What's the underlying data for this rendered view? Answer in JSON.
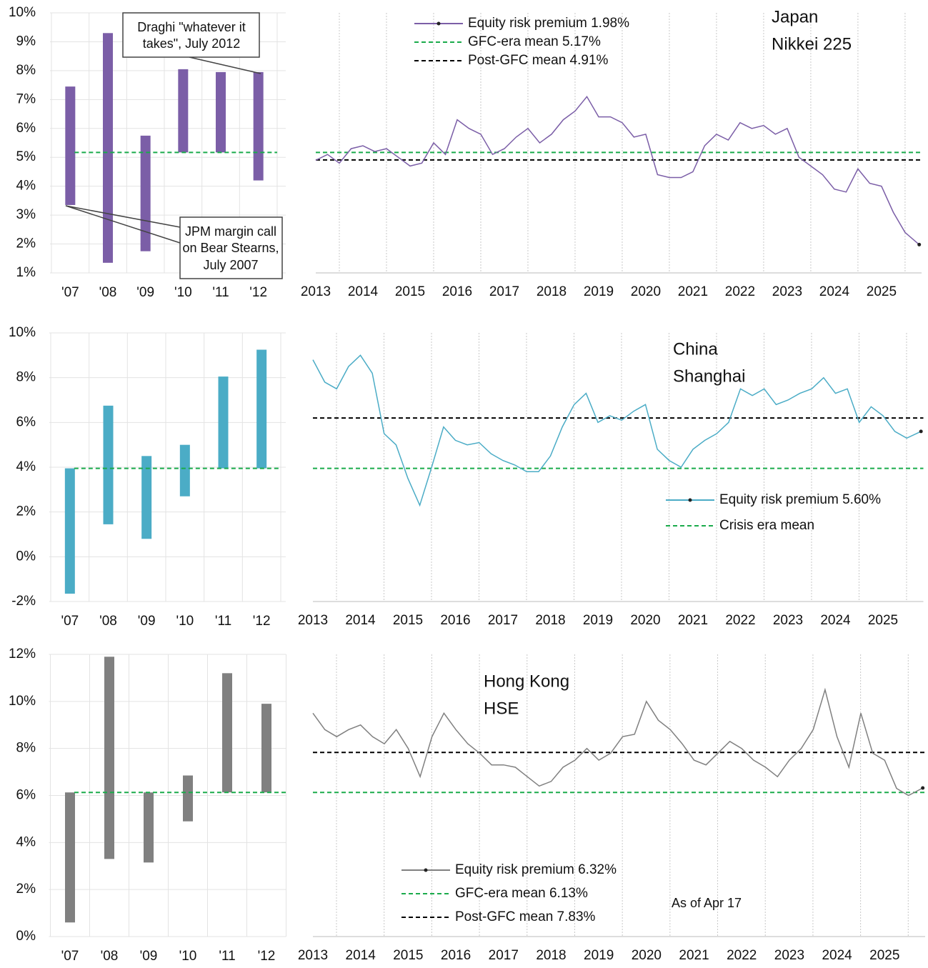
{
  "chart_data": [
    {
      "type": "bar",
      "categories": [
        "'07",
        "'08",
        "'09",
        "'10",
        "'11",
        "'12"
      ],
      "ranges": [
        [
          3.35,
          7.45
        ],
        [
          1.35,
          9.3
        ],
        [
          1.75,
          5.75
        ],
        [
          5.17,
          8.05
        ],
        [
          5.17,
          7.95
        ],
        [
          4.2,
          7.95
        ]
      ],
      "color": "#7b5ea7",
      "ylim": [
        1,
        10
      ],
      "yticks": [
        {
          "value": 1,
          "label": "1%"
        },
        {
          "value": 2,
          "label": "2%"
        },
        {
          "value": 3,
          "label": "3%"
        },
        {
          "value": 4,
          "label": "4%"
        },
        {
          "value": 5,
          "label": "5%"
        },
        {
          "value": 6,
          "label": "6%"
        },
        {
          "value": 7,
          "label": "7%"
        },
        {
          "value": 8,
          "label": "8%"
        },
        {
          "value": 9,
          "label": "9%"
        },
        {
          "value": 10,
          "label": "10%"
        }
      ],
      "reference_lines": [
        {
          "value": 5.17,
          "color": "#1aab4b"
        }
      ],
      "annotations": [
        {
          "lines": [
            "Draghi \"whatever it",
            "takes\", July 2012"
          ]
        },
        {
          "lines": [
            "JPM margin call",
            "on Bear Stearns,",
            "July 2007"
          ]
        }
      ],
      "grid": true
    },
    {
      "type": "line",
      "title": "Japan",
      "subtitle": "Nikkei 225",
      "x": [
        2013,
        2013.25,
        2013.5,
        2013.75,
        2014,
        2014.25,
        2014.5,
        2014.75,
        2015,
        2015.25,
        2015.5,
        2015.75,
        2016,
        2016.25,
        2016.5,
        2016.75,
        2017,
        2017.25,
        2017.5,
        2017.75,
        2018,
        2018.25,
        2018.5,
        2018.75,
        2019,
        2019.25,
        2019.5,
        2019.75,
        2020,
        2020.25,
        2020.5,
        2020.75,
        2021,
        2021.25,
        2021.5,
        2021.75,
        2022,
        2022.25,
        2022.5,
        2022.75,
        2023,
        2023.25,
        2023.5,
        2023.75,
        2024,
        2024.25,
        2024.5,
        2024.75,
        2025,
        2025.25,
        2025.5,
        2025.8
      ],
      "series": [
        {
          "name": "Equity risk premium 1.98%",
          "color": "#7b5ea7",
          "values": [
            4.9,
            5.1,
            4.8,
            5.3,
            5.4,
            5.2,
            5.3,
            5.0,
            4.7,
            4.8,
            5.5,
            5.1,
            6.3,
            6.0,
            5.8,
            5.1,
            5.3,
            5.7,
            6.0,
            5.5,
            5.8,
            6.3,
            6.6,
            7.1,
            6.4,
            6.4,
            6.2,
            5.7,
            5.8,
            4.4,
            4.3,
            4.3,
            4.5,
            5.4,
            5.8,
            5.6,
            6.2,
            6.0,
            6.1,
            5.8,
            6.0,
            5.0,
            4.7,
            4.4,
            3.9,
            3.8,
            4.6,
            4.1,
            4.0,
            3.1,
            2.4,
            1.98
          ]
        }
      ],
      "reference_lines": [
        {
          "name": "GFC-era mean 5.17%",
          "value": 5.17,
          "color": "#1aab4b"
        },
        {
          "name": "Post-GFC mean 4.91%",
          "value": 4.91,
          "color": "#000000"
        }
      ],
      "xlim": [
        2013,
        2025.85
      ],
      "xticks": [
        2013,
        2014,
        2015,
        2016,
        2017,
        2018,
        2019,
        2020,
        2021,
        2022,
        2023,
        2024,
        2025
      ],
      "ylim": [
        1,
        10
      ]
    },
    {
      "type": "bar",
      "categories": [
        "'07",
        "'08",
        "'09",
        "'10",
        "'11",
        "'12"
      ],
      "ranges": [
        [
          -1.65,
          3.95
        ],
        [
          1.45,
          6.75
        ],
        [
          0.8,
          4.5
        ],
        [
          2.7,
          5.0
        ],
        [
          3.95,
          8.05
        ],
        [
          3.95,
          9.25
        ]
      ],
      "color": "#4bacc6",
      "ylim": [
        -2,
        10
      ],
      "yticks": [
        {
          "value": -2,
          "label": "-2%"
        },
        {
          "value": 0,
          "label": "0%"
        },
        {
          "value": 2,
          "label": "2%"
        },
        {
          "value": 4,
          "label": "4%"
        },
        {
          "value": 6,
          "label": "6%"
        },
        {
          "value": 8,
          "label": "8%"
        },
        {
          "value": 10,
          "label": "10%"
        }
      ],
      "reference_lines": [
        {
          "value": 3.95,
          "color": "#1aab4b"
        }
      ],
      "grid": true
    },
    {
      "type": "line",
      "title": "China",
      "subtitle": "Shanghai",
      "x": [
        2013,
        2013.25,
        2013.5,
        2013.75,
        2014,
        2014.25,
        2014.5,
        2014.75,
        2015,
        2015.25,
        2015.5,
        2015.75,
        2016,
        2016.25,
        2016.5,
        2016.75,
        2017,
        2017.25,
        2017.5,
        2017.75,
        2018,
        2018.25,
        2018.5,
        2018.75,
        2019,
        2019.25,
        2019.5,
        2019.75,
        2020,
        2020.25,
        2020.5,
        2020.75,
        2021,
        2021.25,
        2021.5,
        2021.75,
        2022,
        2022.25,
        2022.5,
        2022.75,
        2023,
        2023.25,
        2023.5,
        2023.75,
        2024,
        2024.25,
        2024.5,
        2024.75,
        2025,
        2025.25,
        2025.5,
        2025.8
      ],
      "series": [
        {
          "name": "Equity risk premium 5.60%",
          "color": "#4bacc6",
          "values": [
            8.8,
            7.8,
            7.5,
            8.5,
            9.0,
            8.2,
            5.5,
            5.0,
            3.5,
            2.3,
            4.0,
            5.8,
            5.2,
            5.0,
            5.1,
            4.6,
            4.3,
            4.1,
            3.8,
            3.8,
            4.5,
            5.8,
            6.8,
            7.3,
            6.0,
            6.3,
            6.1,
            6.5,
            6.8,
            4.8,
            4.3,
            4.0,
            4.8,
            5.2,
            5.5,
            6.0,
            7.5,
            7.2,
            7.5,
            6.8,
            7.0,
            7.3,
            7.5,
            8.0,
            7.3,
            7.5,
            6.0,
            6.7,
            6.3,
            5.6,
            5.3,
            5.6
          ]
        }
      ],
      "reference_lines": [
        {
          "name": "Crisis era mean",
          "value": 3.95,
          "color": "#1aab4b"
        },
        {
          "value": 6.2,
          "color": "#000000"
        }
      ],
      "xlim": [
        2013,
        2025.85
      ],
      "xticks": [
        2013,
        2014,
        2015,
        2016,
        2017,
        2018,
        2019,
        2020,
        2021,
        2022,
        2023,
        2024,
        2025
      ],
      "ylim": [
        -2,
        10
      ]
    },
    {
      "type": "bar",
      "categories": [
        "'07",
        "'08",
        "'09",
        "'10",
        "'11",
        "'12"
      ],
      "ranges": [
        [
          0.6,
          6.13
        ],
        [
          3.3,
          11.9
        ],
        [
          3.15,
          6.13
        ],
        [
          4.9,
          6.85
        ],
        [
          6.13,
          11.2
        ],
        [
          6.13,
          9.9
        ]
      ],
      "color": "#808080",
      "ylim": [
        0,
        12
      ],
      "yticks": [
        {
          "value": 0,
          "label": "0%"
        },
        {
          "value": 2,
          "label": "2%"
        },
        {
          "value": 4,
          "label": "4%"
        },
        {
          "value": 6,
          "label": "6%"
        },
        {
          "value": 8,
          "label": "8%"
        },
        {
          "value": 10,
          "label": "10%"
        },
        {
          "value": 12,
          "label": "12%"
        }
      ],
      "reference_lines": [
        {
          "value": 6.13,
          "color": "#1aab4b"
        }
      ],
      "grid": true
    },
    {
      "type": "line",
      "title": "Hong Kong",
      "subtitle": "HSE",
      "note": "As of Apr 17",
      "x": [
        2013,
        2013.25,
        2013.5,
        2013.75,
        2014,
        2014.25,
        2014.5,
        2014.75,
        2015,
        2015.25,
        2015.5,
        2015.75,
        2016,
        2016.25,
        2016.5,
        2016.75,
        2017,
        2017.25,
        2017.5,
        2017.75,
        2018,
        2018.25,
        2018.5,
        2018.75,
        2019,
        2019.25,
        2019.5,
        2019.75,
        2020,
        2020.25,
        2020.5,
        2020.75,
        2021,
        2021.25,
        2021.5,
        2021.75,
        2022,
        2022.25,
        2022.5,
        2022.75,
        2023,
        2023.25,
        2023.5,
        2023.75,
        2024,
        2024.25,
        2024.5,
        2024.75,
        2025,
        2025.25,
        2025.5,
        2025.8
      ],
      "series": [
        {
          "name": "Equity risk premium 6.32%",
          "color": "#808080",
          "values": [
            9.5,
            8.8,
            8.5,
            8.8,
            9.0,
            8.5,
            8.2,
            8.8,
            8.0,
            6.8,
            8.5,
            9.5,
            8.8,
            8.2,
            7.8,
            7.3,
            7.3,
            7.2,
            6.8,
            6.4,
            6.6,
            7.2,
            7.5,
            8.0,
            7.5,
            7.8,
            8.5,
            8.6,
            10.0,
            9.2,
            8.8,
            8.2,
            7.5,
            7.3,
            7.8,
            8.3,
            8.0,
            7.5,
            7.2,
            6.8,
            7.5,
            8.0,
            8.8,
            10.5,
            8.5,
            7.2,
            9.5,
            7.8,
            7.5,
            6.3,
            6.0,
            6.32
          ]
        }
      ],
      "reference_lines": [
        {
          "name": "GFC-era mean 6.13%",
          "value": 6.13,
          "color": "#1aab4b"
        },
        {
          "name": "Post-GFC mean 7.83%",
          "value": 7.83,
          "color": "#000000"
        }
      ],
      "xlim": [
        2013,
        2025.85
      ],
      "xticks": [
        2013,
        2014,
        2015,
        2016,
        2017,
        2018,
        2019,
        2020,
        2021,
        2022,
        2023,
        2024,
        2025
      ],
      "ylim": [
        0,
        12
      ]
    }
  ]
}
